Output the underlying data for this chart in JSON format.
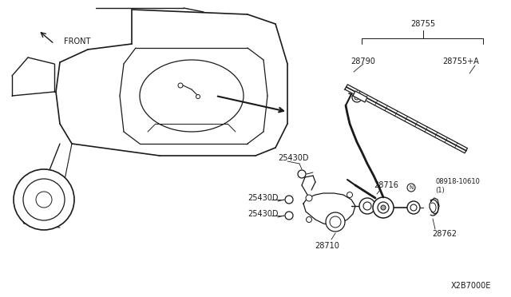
{
  "bg_color": "#ffffff",
  "line_color": "#1a1a1a",
  "figsize": [
    6.4,
    3.72
  ],
  "dpi": 100,
  "parts": {
    "25430D_top": "25430D",
    "25430D_mid": "25430D",
    "25430D_bot": "25430D",
    "28710": "28710",
    "28716": "28716",
    "28755": "28755",
    "28755A": "28755+A",
    "28790": "28790",
    "28762": "28762",
    "08918": "08918-10610\n(1)"
  },
  "front_label": "FRONT",
  "diagram_ref": "X2B7000E"
}
